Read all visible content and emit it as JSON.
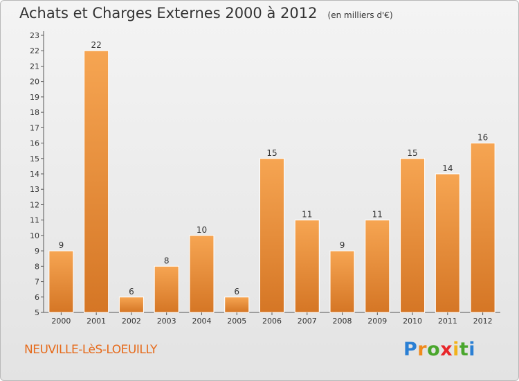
{
  "title": "Achats et Charges Externes 2000 à 2012",
  "unit": "(en milliers d'€)",
  "city": "NEUVILLE-LèS-LOEUILLY",
  "logo": {
    "letters": [
      "P",
      "r",
      "o",
      "x",
      "i",
      "t",
      "i"
    ],
    "colors": [
      "#2a7fd4",
      "#f08a1c",
      "#49a62c",
      "#e8262a",
      "#f2b21a",
      "#49a62c",
      "#2a7fd4"
    ]
  },
  "colors": {
    "bar_light": "#f6a552",
    "bar_dark": "#d57625",
    "city": "#e66a1a"
  },
  "chart_data": {
    "type": "bar",
    "title": "Achats et Charges Externes 2000 à 2012",
    "subtitle": "(en milliers d'€)",
    "categories": [
      "2000",
      "2001",
      "2002",
      "2003",
      "2004",
      "2005",
      "2006",
      "2007",
      "2008",
      "2009",
      "2010",
      "2011",
      "2012"
    ],
    "values": [
      9,
      22,
      6,
      8,
      10,
      6,
      15,
      11,
      9,
      11,
      15,
      14,
      16
    ],
    "ylim": [
      5,
      23
    ],
    "yticks": [
      5,
      6,
      7,
      8,
      9,
      10,
      11,
      12,
      13,
      14,
      15,
      16,
      17,
      18,
      19,
      20,
      21,
      22,
      23
    ],
    "grid": false,
    "legend": "none"
  }
}
